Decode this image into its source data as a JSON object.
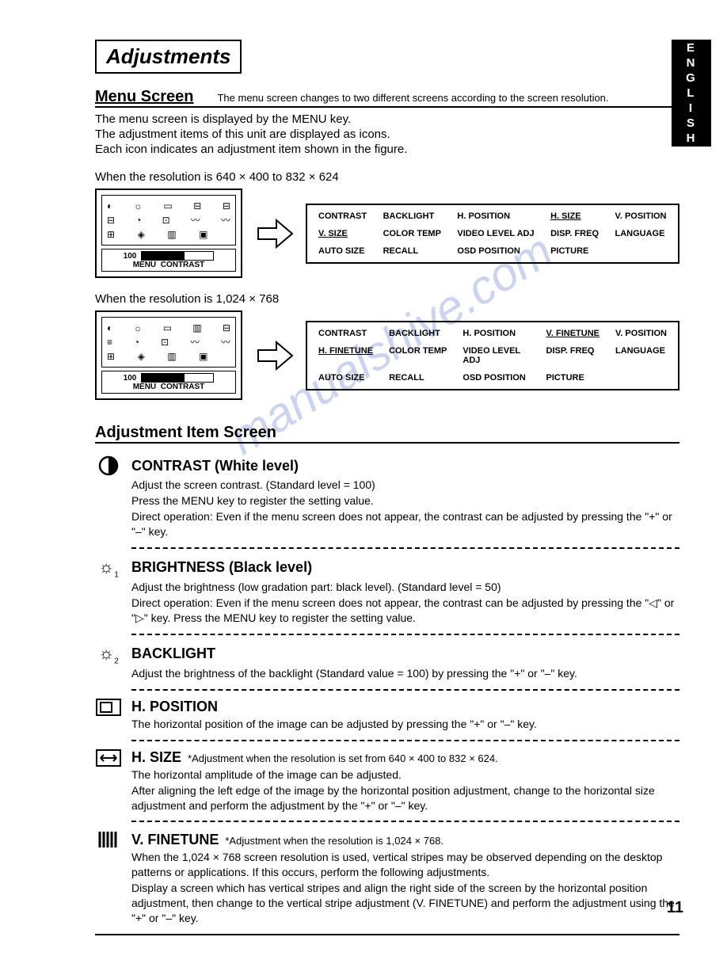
{
  "language_tab": "ENGLISH",
  "title": "Adjustments",
  "menu_section": {
    "heading": "Menu Screen",
    "subtitle": "The menu screen changes to two different screens according to the screen resolution."
  },
  "intro_lines": [
    "The menu screen is displayed by the MENU key.",
    "The adjustment items of this unit are displayed as icons.",
    "Each icon indicates an adjustment item shown in the figure."
  ],
  "panel1": {
    "res_label": "When the resolution is 640 × 400 to 832 × 624",
    "osd": {
      "menu_label": "MENU",
      "value": "100",
      "name": "CONTRAST",
      "bar_fill_pct": 60
    },
    "labels": [
      [
        "CONTRAST",
        "BACKLIGHT",
        "H. POSITION",
        "H. SIZE",
        "V. POSITION"
      ],
      [
        "V. SIZE",
        "COLOR TEMP",
        "VIDEO LEVEL ADJ",
        "DISP. FREQ",
        "LANGUAGE"
      ],
      [
        "AUTO SIZE",
        "RECALL",
        "OSD POSITION",
        "PICTURE",
        ""
      ]
    ],
    "underlined": [
      "H. SIZE",
      "V. SIZE"
    ]
  },
  "panel2": {
    "res_label": "When the resolution is 1,024 × 768",
    "osd": {
      "menu_label": "MENU",
      "value": "100",
      "name": "CONTRAST",
      "bar_fill_pct": 60
    },
    "labels": [
      [
        "CONTRAST",
        "BACKLIGHT",
        "H. POSITION",
        "V. FINETUNE",
        "V. POSITION"
      ],
      [
        "H. FINETUNE",
        "COLOR TEMP",
        "VIDEO LEVEL ADJ",
        "DISP. FREQ",
        "LANGUAGE"
      ],
      [
        "AUTO SIZE",
        "RECALL",
        "OSD POSITION",
        "PICTURE",
        ""
      ]
    ],
    "underlined": [
      "V. FINETUNE",
      "H. FINETUNE"
    ]
  },
  "adj_heading": "Adjustment Item Screen",
  "items": [
    {
      "icon": "contrast",
      "title": "CONTRAST (White level)",
      "subtitle": "",
      "body": [
        "Adjust the screen contrast. (Standard level = 100)",
        "Press the MENU key to register the setting value.",
        "Direct operation: Even if the menu screen does not appear, the contrast can be adjusted by pressing the \"+\" or \"–\" key."
      ],
      "sep": "dash"
    },
    {
      "icon": "bright1",
      "title": "BRIGHTNESS (Black level)",
      "subtitle": "",
      "body": [
        "Adjust the brightness (low gradation part: black level). (Standard level = 50)",
        "Direct operation: Even if the menu screen does not appear, the contrast can be adjusted by pressing the \"◁\" or \"▷\" key. Press the MENU key to register the setting value."
      ],
      "sep": "dash"
    },
    {
      "icon": "bright2",
      "title": "BACKLIGHT",
      "subtitle": "",
      "body": [
        "Adjust the brightness of the backlight (Standard value = 100) by pressing the \"+\" or \"–\" key."
      ],
      "sep": "dash"
    },
    {
      "icon": "hpos",
      "title": "H. POSITION",
      "subtitle": "",
      "body": [
        "The horizontal position of the image can be adjusted by pressing the \"+\" or \"–\" key."
      ],
      "sep": "dash"
    },
    {
      "icon": "hsize",
      "title": "H. SIZE",
      "subtitle": "*Adjustment when the resolution is set from 640 × 400 to 832 × 624.",
      "body": [
        "The horizontal amplitude of the image can be adjusted.",
        "After aligning the left edge of the image by the horizontal position adjustment, change to the horizontal size adjustment and perform the adjustment by the \"+\" or \"–\" key."
      ],
      "sep": "dash"
    },
    {
      "icon": "vfine",
      "title": "V. FINETUNE",
      "subtitle": "*Adjustment when the resolution is 1,024 × 768.",
      "body": [
        "When the 1,024 × 768 screen resolution is used, vertical stripes may be observed depending on the desktop patterns or applications. If this occurs, perform the following adjustments.",
        "Display a screen which has vertical stripes and align the right side of the screen by the horizontal position adjustment, then change to the vertical stripe adjustment (V. FINETUNE) and perform the adjustment using the \"+\" or \"–\" key."
      ],
      "sep": "solid"
    }
  ],
  "page_number": "11",
  "watermark": "manualshive.com",
  "colors": {
    "text": "#000000",
    "bg": "#ffffff",
    "watermark": "#8b9fe0"
  }
}
